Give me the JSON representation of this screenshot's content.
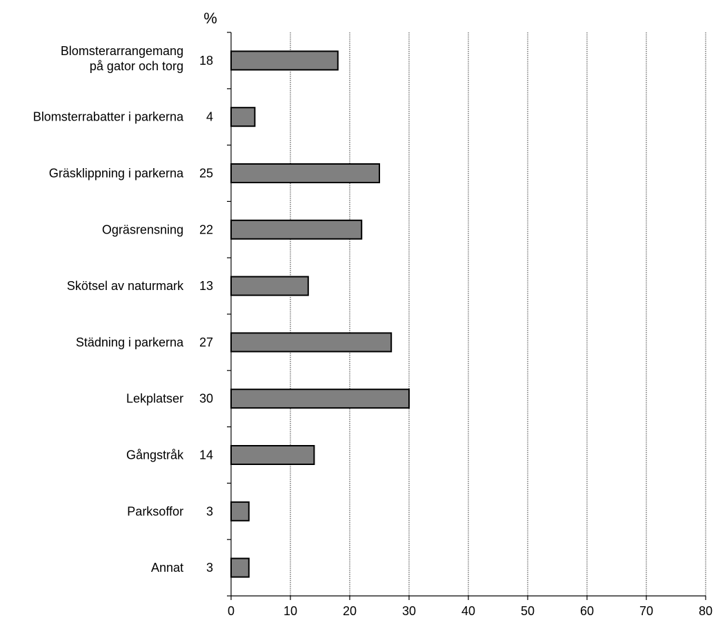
{
  "chart_data": {
    "type": "bar",
    "orientation": "horizontal",
    "unit_label": "%",
    "categories": [
      [
        "Blomsterarrangemang",
        "på gator och torg"
      ],
      [
        "Blomsterrabatter i parkerna"
      ],
      [
        "Gräsklippning i parkerna"
      ],
      [
        "Ogräsrensning"
      ],
      [
        "Skötsel av naturmark"
      ],
      [
        "Städning i parkerna"
      ],
      [
        "Lekplatser"
      ],
      [
        "Gångstråk"
      ],
      [
        "Parksoffor"
      ],
      [
        "Annat"
      ]
    ],
    "values": [
      18,
      4,
      25,
      22,
      13,
      27,
      30,
      14,
      3,
      3
    ],
    "value_labels": [
      "18",
      "4",
      "25",
      "22",
      "13",
      "27",
      "30",
      "14",
      "3",
      "3"
    ],
    "xlim": [
      0,
      80
    ],
    "xticks": [
      "0",
      "10",
      "20",
      "30",
      "40",
      "50",
      "60",
      "70",
      "80"
    ],
    "grid": true,
    "colors": {
      "bar": "#808080",
      "bar_edge": "#000000",
      "grid": "#000000"
    }
  }
}
